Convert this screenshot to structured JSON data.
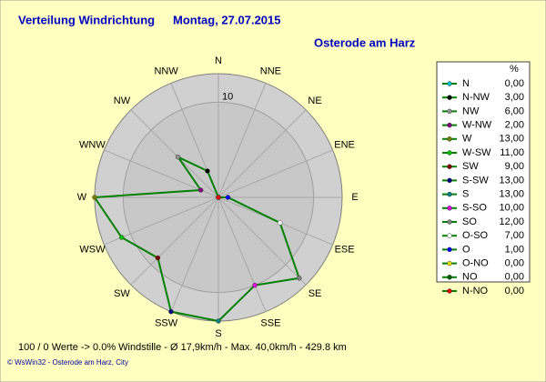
{
  "chart_data": {
    "type": "radar",
    "title": "Verteilung Windrichtung",
    "date": "Montag, 27.07.2015",
    "subtitle": "Osterode am Harz",
    "direction": "counterclockwise",
    "categories": [
      "N",
      "NNW",
      "NW",
      "WNW",
      "W",
      "WSW",
      "SW",
      "SSW",
      "S",
      "SSE",
      "SE",
      "ESE",
      "E",
      "ENE",
      "NE",
      "NNE"
    ],
    "legend_title": "%",
    "legend_names": [
      "N",
      "N-NW",
      "NW",
      "W-NW",
      "W",
      "W-SW",
      "SW",
      "S-SW",
      "S",
      "S-SO",
      "SO",
      "O-SO",
      "O",
      "O-NO",
      "NO",
      "N-NO"
    ],
    "values": [
      0,
      3,
      6,
      2,
      13,
      11,
      9,
      13,
      13,
      10,
      12,
      7,
      1,
      0,
      0,
      0
    ],
    "value_labels": [
      "0,00",
      "3,00",
      "6,00",
      "2,00",
      "13,00",
      "11,00",
      "9,00",
      "13,00",
      "13,00",
      "10,00",
      "12,00",
      "7,00",
      "1,00",
      "0,00",
      "0,00",
      "0,00"
    ],
    "colors": [
      "#00c0c0",
      "#000000",
      "#909090",
      "#800080",
      "#708000",
      "#00c000",
      "#800000",
      "#000080",
      "#008080",
      "#e000e0",
      "#808080",
      "#ffffff",
      "#0000ff",
      "#e0e000",
      "#006000",
      "#e00000"
    ],
    "line_color": "#008000",
    "rlim": [
      0,
      13
    ],
    "rticks": [
      10
    ],
    "footer": "100 / 0 Werte  -> 0.0% Windstille  -  Ø 17,9km/h  -  Max. 40,0km/h  -   429.8 km",
    "copyright": "© WsWin32  -  Osterode am Harz, City"
  }
}
